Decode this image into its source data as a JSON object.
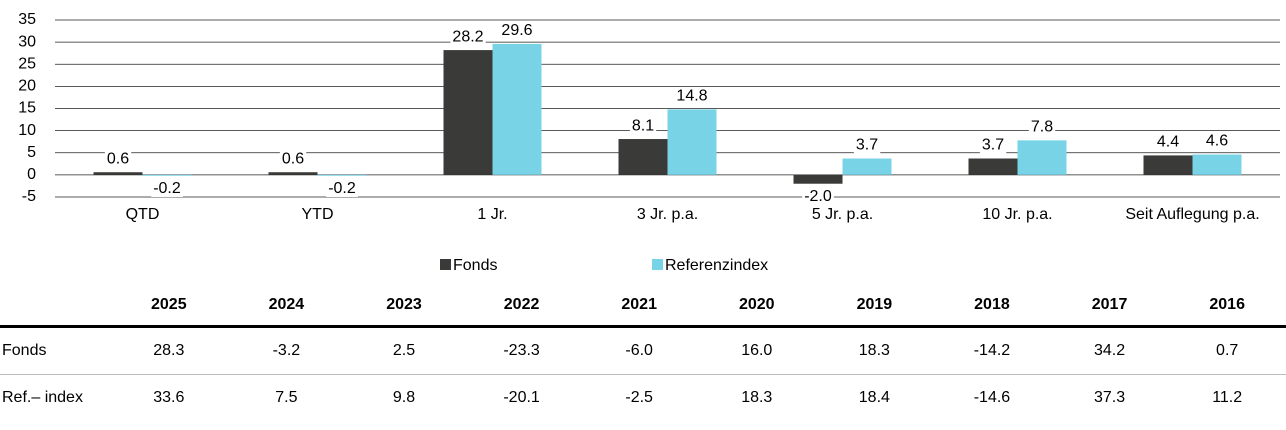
{
  "chart_data": {
    "type": "bar",
    "categories": [
      "QTD",
      "YTD",
      "1 Jr.",
      "3 Jr. p.a.",
      "5 Jr. p.a.",
      "10 Jr. p.a.",
      "Seit Auflegung p.a."
    ],
    "series": [
      {
        "name": "Fonds",
        "color": "#3a3a38",
        "values": [
          0.6,
          0.6,
          28.2,
          8.1,
          -2,
          3.7,
          4.4
        ],
        "value_labels": [
          "0.6",
          "0.6",
          "28.2",
          "8.1",
          "-2.0",
          "3.7",
          "4.4"
        ]
      },
      {
        "name": "Referenzindex",
        "color": "#79d3e6",
        "values": [
          -0.2,
          -0.2,
          29.6,
          14.8,
          3.7,
          7.8,
          4.6
        ],
        "value_labels": [
          "-0.2",
          "-0.2",
          "29.6",
          "14.8",
          "3.7",
          "7.8",
          "4.6"
        ]
      }
    ],
    "ylim": [
      -5,
      35
    ],
    "yticks": [
      -5,
      0,
      5,
      10,
      15,
      20,
      25,
      30,
      35
    ],
    "grid": true,
    "legend": "bottom"
  },
  "table": {
    "columns": [
      "2025",
      "2024",
      "2023",
      "2022",
      "2021",
      "2020",
      "2019",
      "2018",
      "2017",
      "2016"
    ],
    "rows": [
      {
        "label": "Fonds",
        "values": [
          "28.3",
          "-3.2",
          "2.5",
          "-23.3",
          "-6.0",
          "16.0",
          "18.3",
          "-14.2",
          "34.2",
          "0.7"
        ]
      },
      {
        "label": "Ref.– index",
        "values": [
          "33.6",
          "7.5",
          "9.8",
          "-20.1",
          "-2.5",
          "18.3",
          "18.4",
          "-14.6",
          "37.3",
          "11.2"
        ]
      }
    ]
  }
}
